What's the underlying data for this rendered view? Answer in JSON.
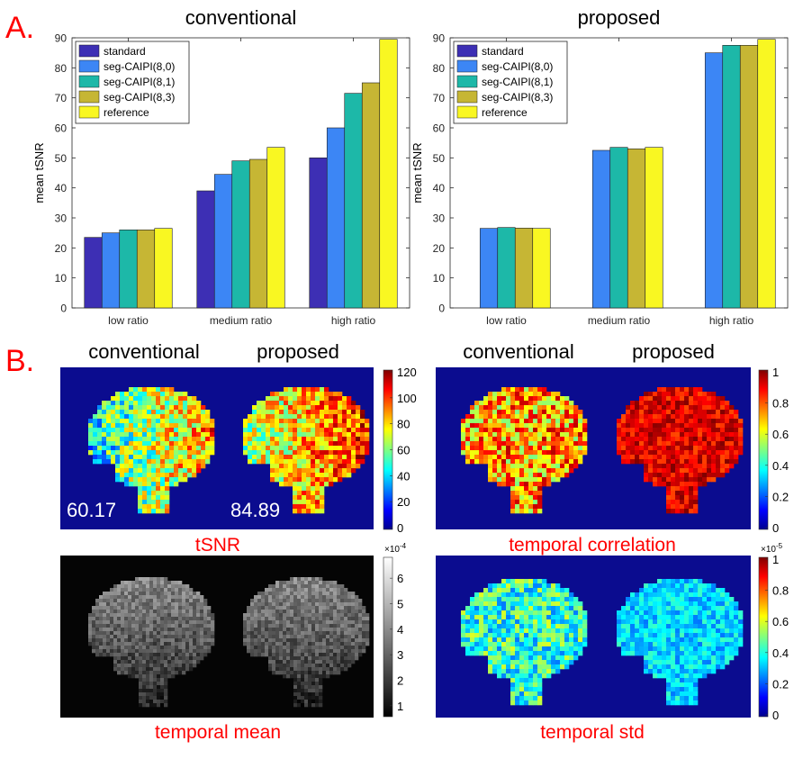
{
  "panel_a_label": "A.",
  "panel_b_label": "B.",
  "colors": {
    "standard": "#3d2fb4",
    "seg80": "#3c86f5",
    "seg81": "#1db8a8",
    "seg83": "#c6b634",
    "reference": "#f9f722",
    "panel_label": "#ff0000",
    "caption": "#ff0000"
  },
  "chart_data": [
    {
      "type": "bar",
      "title": "conventional",
      "ylabel": "mean tSNR",
      "xlabel": "",
      "ylim": [
        0,
        90
      ],
      "yticks": [
        0,
        10,
        20,
        30,
        40,
        50,
        60,
        70,
        80,
        90
      ],
      "categories": [
        "low ratio",
        "medium ratio",
        "high ratio"
      ],
      "legend_position": "top-left",
      "series": [
        {
          "name": "standard",
          "values": [
            23.5,
            39,
            50
          ]
        },
        {
          "name": "seg-CAIPI(8,0)",
          "values": [
            25,
            44.5,
            60
          ]
        },
        {
          "name": "seg-CAIPI(8,1)",
          "values": [
            26,
            49,
            71.5
          ]
        },
        {
          "name": "seg-CAIPI(8,3)",
          "values": [
            26,
            49.5,
            75
          ]
        },
        {
          "name": "reference",
          "values": [
            26.5,
            53.5,
            89.5
          ]
        }
      ]
    },
    {
      "type": "bar",
      "title": "proposed",
      "ylabel": "mean tSNR",
      "xlabel": "",
      "ylim": [
        0,
        90
      ],
      "yticks": [
        0,
        10,
        20,
        30,
        40,
        50,
        60,
        70,
        80,
        90
      ],
      "categories": [
        "low ratio",
        "medium ratio",
        "high ratio"
      ],
      "legend_position": "top-left",
      "series": [
        {
          "name": "standard",
          "values": [
            0,
            0,
            0
          ]
        },
        {
          "name": "seg-CAIPI(8,0)",
          "values": [
            26.5,
            52.5,
            85
          ]
        },
        {
          "name": "seg-CAIPI(8,1)",
          "values": [
            26.8,
            53.5,
            87.5
          ]
        },
        {
          "name": "seg-CAIPI(8,3)",
          "values": [
            26.6,
            53,
            87.5
          ]
        },
        {
          "name": "reference",
          "values": [
            26.5,
            53.5,
            89.5
          ]
        }
      ]
    }
  ],
  "panel_b": {
    "tsnr": {
      "headers": [
        "conventional",
        "proposed"
      ],
      "values": [
        "60.17",
        "84.89"
      ],
      "caption": "tSNR",
      "colorbar_ticks": [
        "120",
        "100",
        "80",
        "60",
        "40",
        "20",
        "0"
      ],
      "colormap": "jet"
    },
    "correlation": {
      "headers": [
        "conventional",
        "proposed"
      ],
      "caption": "temporal correlation",
      "colorbar_ticks": [
        "1",
        "0.8",
        "0.6",
        "0.4",
        "0.2",
        "0"
      ],
      "colormap": "jet"
    },
    "mean": {
      "caption": "temporal mean",
      "colorbar_ticks": [
        "6",
        "5",
        "4",
        "3",
        "2",
        "1"
      ],
      "exponent_base": "×10",
      "exponent": "-4",
      "colormap": "gray"
    },
    "std": {
      "caption": "temporal std",
      "colorbar_ticks": [
        "1",
        "0.8",
        "0.6",
        "0.4",
        "0.2",
        "0"
      ],
      "exponent_base": "×10",
      "exponent": "-5",
      "colormap": "jet"
    }
  }
}
